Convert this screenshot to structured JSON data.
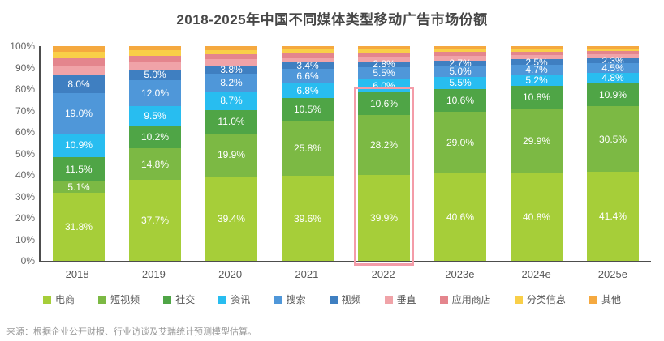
{
  "title": "2018-2025年中国不同媒体类型移动广告市场份额",
  "source_note": "来源：根据企业公开财报、行业访谈及艾瑞统计预测模型估算。",
  "colors": {
    "background": "#ffffff",
    "title_text": "#474747",
    "axis_line": "#4d4d4d",
    "tick_text": "#666666",
    "x_label_text": "#595959",
    "segment_label_text": "#ffffff",
    "legend_text": "#595959",
    "source_text": "#999999",
    "highlight_border": "#f49ca8"
  },
  "chart_data": {
    "type": "bar",
    "stacked": true,
    "unit": "%",
    "grid": false,
    "legend_position": "bottom",
    "ylim": [
      0,
      100
    ],
    "yticks": [
      "0%",
      "10%",
      "20%",
      "30%",
      "40%",
      "50%",
      "60%",
      "70%",
      "80%",
      "90%",
      "100%"
    ],
    "categories": [
      "2018",
      "2019",
      "2020",
      "2021",
      "2022",
      "2023e",
      "2024e",
      "2025e"
    ],
    "series": [
      {
        "name": "电商",
        "color": "#a6ce39",
        "label_shown": true,
        "values": [
          31.8,
          37.7,
          39.4,
          39.6,
          39.9,
          40.6,
          40.8,
          41.4
        ]
      },
      {
        "name": "短视频",
        "color": "#7cb944",
        "label_shown": true,
        "values": [
          5.1,
          14.8,
          19.9,
          25.8,
          28.2,
          29.0,
          29.9,
          30.5
        ]
      },
      {
        "name": "社交",
        "color": "#4fa546",
        "label_shown": true,
        "values": [
          11.5,
          10.2,
          11.0,
          10.5,
          10.6,
          10.6,
          10.8,
          10.9
        ]
      },
      {
        "name": "资讯",
        "color": "#28bdf0",
        "label_shown": true,
        "values": [
          10.9,
          9.5,
          8.7,
          6.8,
          6.0,
          5.5,
          5.2,
          4.8
        ]
      },
      {
        "name": "搜索",
        "color": "#4f97d9",
        "label_shown": true,
        "values": [
          19.0,
          12.0,
          8.2,
          6.6,
          5.5,
          5.0,
          4.7,
          4.5
        ]
      },
      {
        "name": "视频",
        "color": "#3f7fc1",
        "label_shown": true,
        "values": [
          8.0,
          5.0,
          3.8,
          3.4,
          2.8,
          2.7,
          2.5,
          2.3
        ]
      },
      {
        "name": "垂直",
        "color": "#f0a3a8",
        "label_shown": false,
        "values_estimated": true,
        "values": [
          4.4,
          3.4,
          2.8,
          2.2,
          2.1,
          2.0,
          1.9,
          1.7
        ]
      },
      {
        "name": "应用商店",
        "color": "#e4858d",
        "label_shown": false,
        "values_estimated": true,
        "values": [
          3.9,
          3.0,
          2.5,
          2.1,
          2.0,
          1.9,
          1.7,
          1.6
        ]
      },
      {
        "name": "分类信息",
        "color": "#f9cf48",
        "label_shown": false,
        "values_estimated": true,
        "values": [
          2.9,
          2.4,
          2.0,
          1.7,
          1.5,
          1.4,
          1.3,
          1.2
        ]
      },
      {
        "name": "其他",
        "color": "#f5a93f",
        "label_shown": false,
        "values_estimated": true,
        "values": [
          2.5,
          2.0,
          1.7,
          1.3,
          1.4,
          1.3,
          1.2,
          1.1
        ]
      }
    ],
    "highlight": {
      "category": "2022",
      "segments_covered": [
        "电商",
        "短视频",
        "社交"
      ]
    }
  }
}
